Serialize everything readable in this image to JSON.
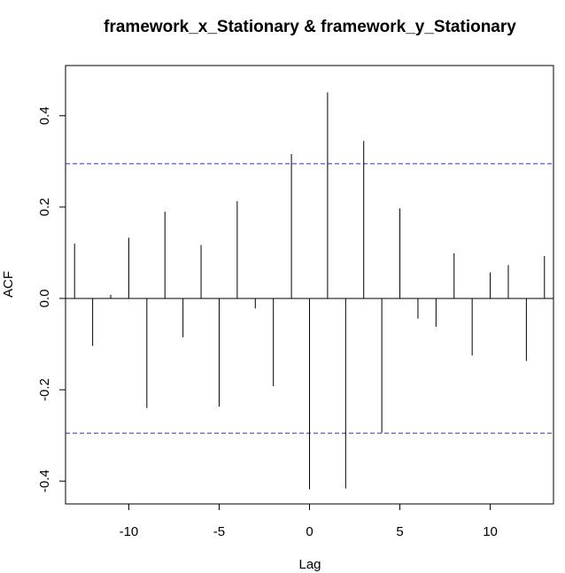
{
  "chart_data": {
    "type": "bar",
    "title": "framework_x_Stationary & framework_y_Stationary",
    "xlabel": "Lag",
    "ylabel": "ACF",
    "xlim": [
      -13.5,
      13.5
    ],
    "ylim": [
      -0.45,
      0.51
    ],
    "x_ticks": [
      -10,
      -5,
      0,
      5,
      10
    ],
    "x_tick_labels": [
      "-10",
      "-5",
      "0",
      "5",
      "10"
    ],
    "y_ticks": [
      -0.4,
      -0.2,
      0.0,
      0.2,
      0.4
    ],
    "y_tick_labels": [
      "-0.4",
      "-0.2",
      "0.0",
      "0.2",
      "0.4"
    ],
    "confidence_band": [
      -0.295,
      0.295
    ],
    "confidence_color": "#2b2bb3",
    "lags": [
      -13,
      -12,
      -11,
      -10,
      -9,
      -8,
      -7,
      -6,
      -5,
      -4,
      -3,
      -2,
      -1,
      0,
      1,
      2,
      3,
      4,
      5,
      6,
      7,
      8,
      9,
      10,
      11,
      12,
      13
    ],
    "values": [
      0.12,
      -0.104,
      0.008,
      0.133,
      -0.24,
      0.19,
      -0.085,
      0.117,
      -0.237,
      0.213,
      -0.022,
      -0.192,
      0.316,
      -0.418,
      0.451,
      -0.416,
      0.345,
      -0.294,
      0.197,
      -0.044,
      -0.062,
      0.099,
      -0.125,
      0.057,
      0.073,
      -0.137,
      0.093
    ],
    "grid": false
  }
}
